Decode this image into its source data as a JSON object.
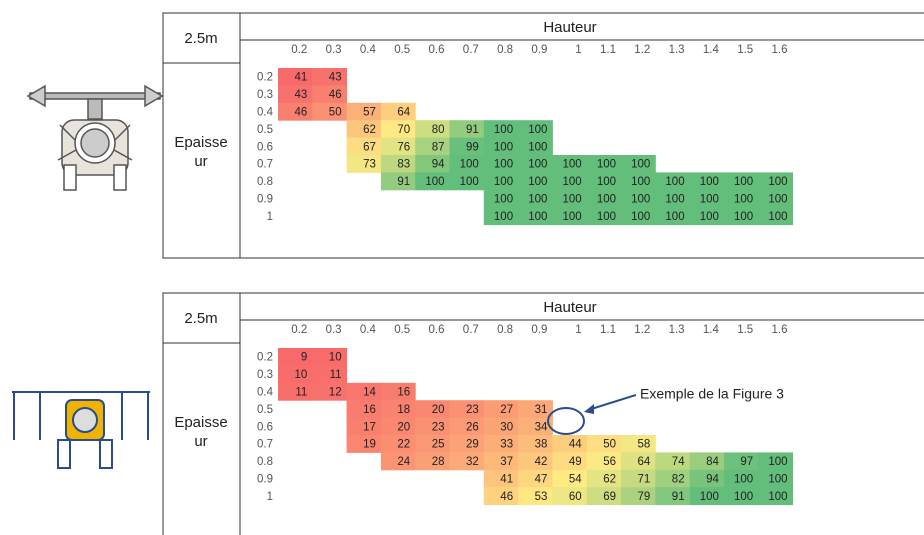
{
  "tables": [
    {
      "corner": "2.5m",
      "column_header": "Hauteur",
      "row_header": [
        "Epaisse",
        "ur"
      ],
      "columns": [
        0.2,
        0.3,
        0.4,
        0.5,
        0.6,
        0.7,
        0.8,
        0.9,
        1,
        1.1,
        1.2,
        1.3,
        1.4,
        1.5,
        1.6
      ],
      "rows": [
        0.2,
        0.3,
        0.4,
        0.5,
        0.6,
        0.7,
        0.8,
        0.9,
        1
      ],
      "cells": [
        [
          41,
          43,
          null,
          null,
          null,
          null,
          null,
          null,
          null,
          null,
          null,
          null,
          null,
          null,
          null
        ],
        [
          43,
          46,
          null,
          null,
          null,
          null,
          null,
          null,
          null,
          null,
          null,
          null,
          null,
          null,
          null
        ],
        [
          46,
          50,
          57,
          64,
          null,
          null,
          null,
          null,
          null,
          null,
          null,
          null,
          null,
          null,
          null
        ],
        [
          null,
          null,
          62,
          70,
          80,
          91,
          100,
          100,
          null,
          null,
          null,
          null,
          null,
          null,
          null
        ],
        [
          null,
          null,
          67,
          76,
          87,
          99,
          100,
          100,
          null,
          null,
          null,
          null,
          null,
          null,
          null
        ],
        [
          null,
          null,
          73,
          83,
          94,
          100,
          100,
          100,
          100,
          100,
          100,
          null,
          null,
          null,
          null
        ],
        [
          null,
          null,
          null,
          91,
          100,
          100,
          100,
          100,
          100,
          100,
          100,
          100,
          100,
          100,
          100
        ],
        [
          null,
          null,
          null,
          null,
          null,
          null,
          100,
          100,
          100,
          100,
          100,
          100,
          100,
          100,
          100
        ],
        [
          null,
          null,
          null,
          null,
          null,
          null,
          100,
          100,
          100,
          100,
          100,
          100,
          100,
          100,
          100
        ]
      ]
    },
    {
      "corner": "2.5m",
      "column_header": "Hauteur",
      "row_header": [
        "Epaisse",
        "ur"
      ],
      "columns": [
        0.2,
        0.3,
        0.4,
        0.5,
        0.6,
        0.7,
        0.8,
        0.9,
        1,
        1.1,
        1.2,
        1.3,
        1.4,
        1.5,
        1.6
      ],
      "rows": [
        0.2,
        0.3,
        0.4,
        0.5,
        0.6,
        0.7,
        0.8,
        0.9,
        1
      ],
      "cells": [
        [
          9,
          10,
          null,
          null,
          null,
          null,
          null,
          null,
          null,
          null,
          null,
          null,
          null,
          null,
          null
        ],
        [
          10,
          11,
          null,
          null,
          null,
          null,
          null,
          null,
          null,
          null,
          null,
          null,
          null,
          null,
          null
        ],
        [
          11,
          12,
          14,
          16,
          null,
          null,
          null,
          null,
          null,
          null,
          null,
          null,
          null,
          null,
          null
        ],
        [
          null,
          null,
          16,
          18,
          20,
          23,
          27,
          31,
          null,
          null,
          null,
          null,
          null,
          null,
          null
        ],
        [
          null,
          null,
          17,
          20,
          23,
          26,
          30,
          34,
          null,
          null,
          null,
          null,
          null,
          null,
          null
        ],
        [
          null,
          null,
          19,
          22,
          25,
          29,
          33,
          38,
          44,
          50,
          58,
          null,
          null,
          null,
          null
        ],
        [
          null,
          null,
          null,
          24,
          28,
          32,
          37,
          42,
          49,
          56,
          64,
          74,
          84,
          97,
          100
        ],
        [
          null,
          null,
          null,
          null,
          null,
          null,
          41,
          47,
          54,
          62,
          71,
          82,
          94,
          100,
          100
        ],
        [
          null,
          null,
          null,
          null,
          null,
          null,
          46,
          53,
          60,
          69,
          79,
          91,
          100,
          100,
          100
        ]
      ]
    }
  ],
  "annotation": "Exemple de la Figure 3"
}
